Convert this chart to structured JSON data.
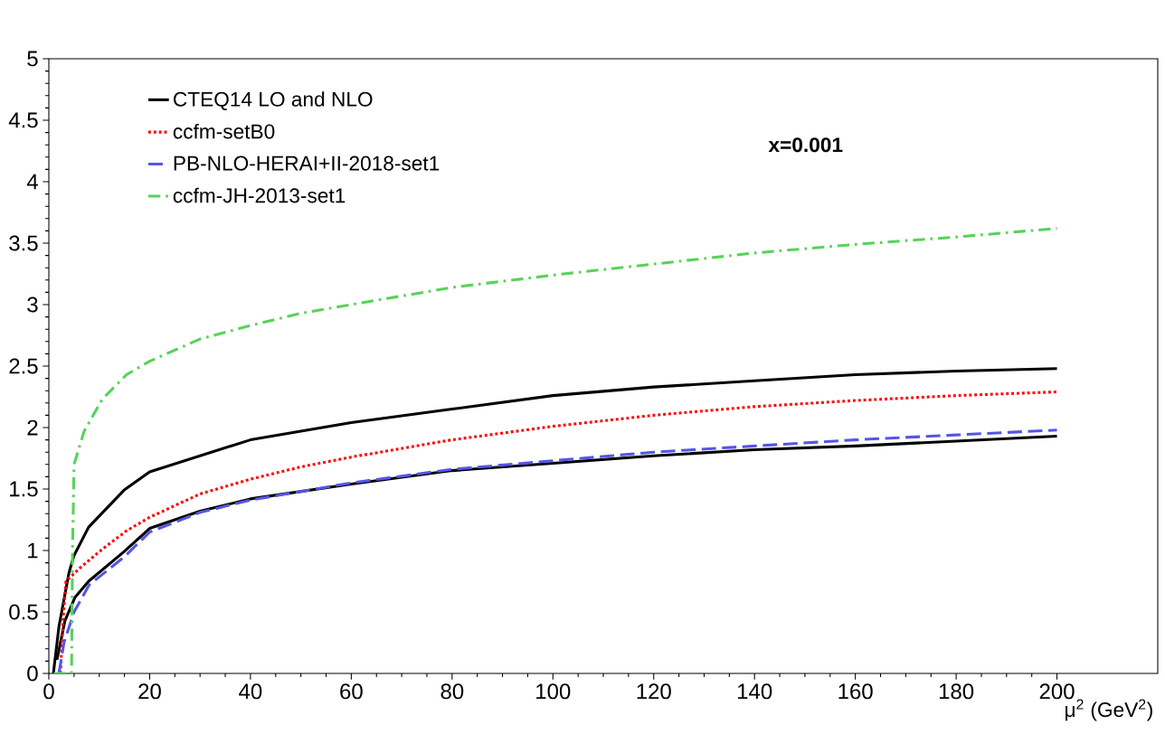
{
  "chart_data": {
    "type": "line",
    "xlabel": "μ$^{2}$ (GeV$^{2}$)",
    "annotations": [
      "x=0.001"
    ],
    "xlim": [
      0,
      220
    ],
    "ylim": [
      0,
      5
    ],
    "xticks": [
      0,
      20,
      40,
      60,
      80,
      100,
      120,
      140,
      160,
      180,
      200
    ],
    "yticks": [
      0,
      0.5,
      1,
      1.5,
      2,
      2.5,
      3,
      3.5,
      4,
      4.5,
      5
    ],
    "grid": false,
    "legend": "top left",
    "series": [
      {
        "name": "CTEQ14 LO and NLO",
        "color": "#000000",
        "line_style": "solid",
        "x": [
          0.9,
          2,
          4,
          5,
          7.9,
          14.9,
          20,
          40,
          60,
          80,
          100,
          120,
          140,
          160,
          180,
          200
        ],
        "values": [
          0,
          0.38,
          0.82,
          0.96,
          1.19,
          1.49,
          1.64,
          1.9,
          2.04,
          2.15,
          2.26,
          2.33,
          2.38,
          2.43,
          2.46,
          2.48
        ]
      },
      {
        "color": "#000000",
        "line_style": "solid",
        "x": [
          1.6,
          3.2,
          5.2,
          7.9,
          14.9,
          20,
          30,
          40,
          60,
          80,
          100,
          120,
          140,
          160,
          180,
          200
        ],
        "values": [
          0.11,
          0.43,
          0.62,
          0.75,
          0.99,
          1.18,
          1.32,
          1.42,
          1.54,
          1.65,
          1.71,
          1.77,
          1.82,
          1.85,
          1.89,
          1.93
        ]
      },
      {
        "name": "ccfm-setB0",
        "color": "#ff0000",
        "line_style": "dotted",
        "x": [
          2.3,
          2.9,
          3.4,
          6.5,
          10.6,
          15.4,
          20,
          30,
          40,
          50,
          60,
          80,
          100,
          120,
          140,
          160,
          180,
          200
        ],
        "values": [
          0,
          0.48,
          0.75,
          0.87,
          1.01,
          1.16,
          1.27,
          1.46,
          1.58,
          1.68,
          1.76,
          1.9,
          2.01,
          2.1,
          2.17,
          2.22,
          2.26,
          2.29
        ]
      },
      {
        "name": "PB-NLO-HERAI+II-2018-set1",
        "color": "#5555e8",
        "line_style": "dashed",
        "x": [
          2,
          3,
          5,
          8,
          15,
          20,
          30,
          40,
          60,
          80,
          100,
          120,
          140,
          160,
          180,
          200
        ],
        "values": [
          0,
          0.25,
          0.5,
          0.72,
          0.95,
          1.15,
          1.31,
          1.41,
          1.55,
          1.66,
          1.73,
          1.8,
          1.85,
          1.9,
          1.94,
          1.98
        ]
      },
      {
        "name": "ccfm-JH-2013-set1",
        "color": "#57d357",
        "line_style": "dashdot",
        "x": [
          1,
          4.5,
          4.7,
          5,
          7,
          10.6,
          15.4,
          20,
          30,
          40,
          50,
          60,
          80,
          100,
          120,
          140,
          160,
          180,
          200
        ],
        "values": [
          0,
          0,
          1.0,
          1.7,
          1.97,
          2.23,
          2.43,
          2.54,
          2.72,
          2.83,
          2.93,
          3.0,
          3.14,
          3.24,
          3.33,
          3.42,
          3.49,
          3.55,
          3.62
        ]
      }
    ]
  }
}
